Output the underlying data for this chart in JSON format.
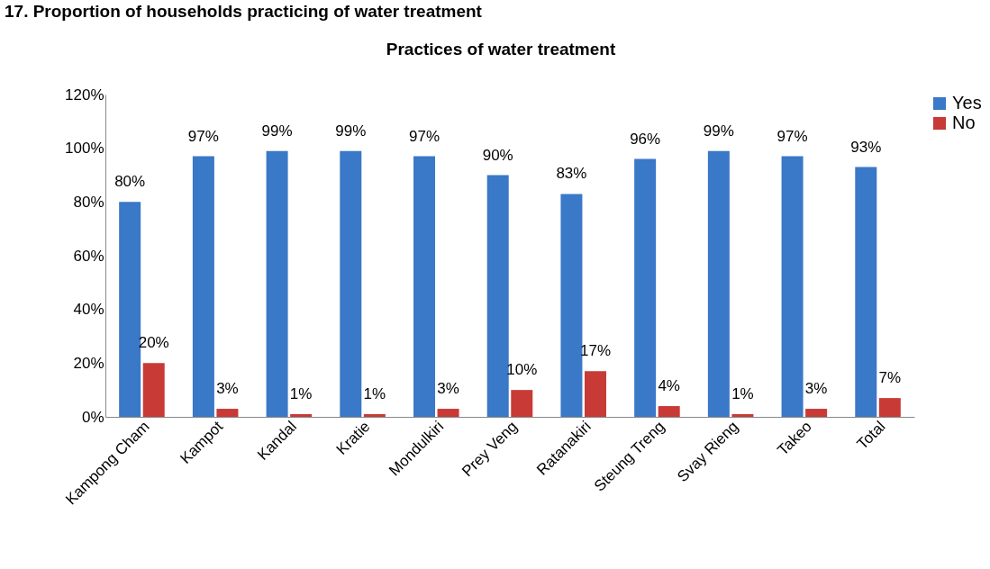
{
  "chart_data": {
    "type": "bar",
    "title": "Practices of water treatment",
    "annotations": [
      "17. Proportion of households practicing of water treatment"
    ],
    "categories": [
      "Kampong Cham",
      "Kampot",
      "Kandal",
      "Kratie",
      "Mondulkiri",
      "Prey Veng",
      "Ratanakiri",
      "Steung Treng",
      "Svay Rieng",
      "Takeo",
      "Total"
    ],
    "series": [
      {
        "name": "Yes",
        "color": "#3a78c8",
        "values": [
          80,
          97,
          99,
          99,
          97,
          90,
          83,
          96,
          99,
          97,
          93
        ],
        "value_labels": [
          "80%",
          "97%",
          "99%",
          "99%",
          "97%",
          "90%",
          "83%",
          "96%",
          "99%",
          "97%",
          "93%"
        ]
      },
      {
        "name": "No",
        "color": "#c83a36",
        "values": [
          20,
          3,
          1,
          1,
          3,
          10,
          17,
          4,
          1,
          3,
          7
        ],
        "value_labels": [
          "20%",
          "3%",
          "1%",
          "1%",
          "3%",
          "10%",
          "17%",
          "4%",
          "1%",
          "3%",
          "7%"
        ]
      }
    ],
    "ylim": [
      0,
      120
    ],
    "yticks": [
      {
        "value": 0,
        "label": "0%"
      },
      {
        "value": 20,
        "label": "20%"
      },
      {
        "value": 40,
        "label": "40%"
      },
      {
        "value": 60,
        "label": "60%"
      },
      {
        "value": 80,
        "label": "80%"
      },
      {
        "value": 100,
        "label": "100%"
      },
      {
        "value": 120,
        "label": "120%"
      }
    ],
    "grid": false,
    "legend": "right"
  }
}
